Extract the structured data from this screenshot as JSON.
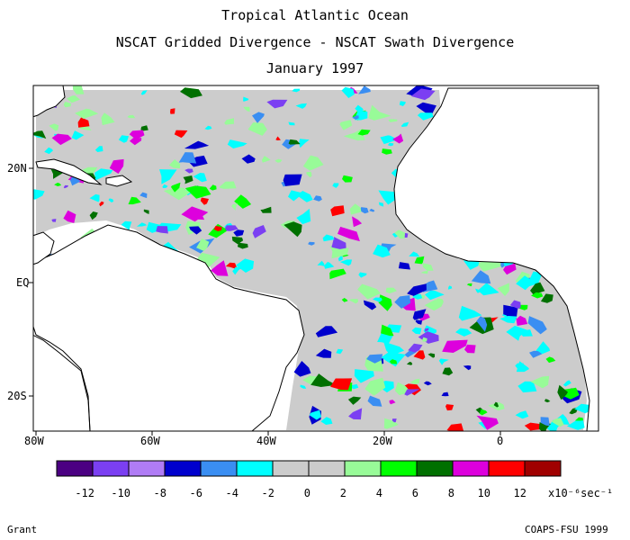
{
  "title_lines": [
    "Tropical Atlantic Ocean",
    "NSCAT Gridded Divergence - NSCAT Swath Divergence",
    "January 1997"
  ],
  "map": {
    "lon_labels": [
      "80W",
      "60W",
      "40W",
      "20W",
      "0"
    ],
    "lat_labels": [
      "20N",
      "EQ",
      "20S"
    ]
  },
  "colorbar": {
    "colors": [
      "#4b0082",
      "#7b3ff2",
      "#b07cf5",
      "#0000cd",
      "#3a8ef2",
      "#00ffff",
      "#cccccc",
      "#cccccc",
      "#98fb98",
      "#00ff00",
      "#007000",
      "#dd00dd",
      "#ff0000",
      "#a00000"
    ],
    "tick_labels": [
      "-12",
      "-10",
      "-8",
      "-6",
      "-4",
      "-2",
      "0",
      "2",
      "4",
      "6",
      "8",
      "10",
      "12"
    ],
    "units": "x10⁻⁶sec⁻¹"
  },
  "footer": {
    "left": "Grant",
    "right": "COAPS-FSU 1999"
  }
}
